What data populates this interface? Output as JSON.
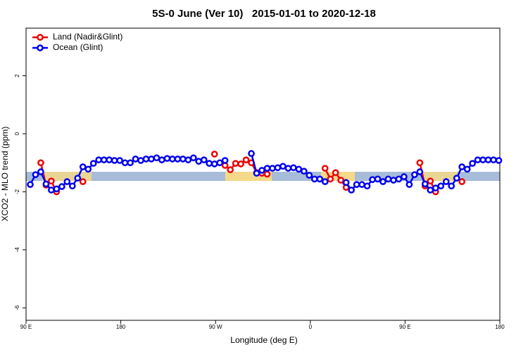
{
  "chart_data": {
    "type": "line",
    "title": "5S-0 June (Ver 10)   2015-01-01 to 2020-12-18",
    "x_label": "Longitude (deg E)",
    "y_label": "XCO2 - MLO trend (ppm)",
    "xlim": [
      90,
      540
    ],
    "xticks": [
      {
        "value": 90,
        "label": "90 E"
      },
      180,
      {
        "value": 270,
        "label": "90 W"
      },
      {
        "value": 360,
        "label": "0"
      },
      {
        "value": 450,
        "label": "90 E"
      },
      {
        "value": 540,
        "label": "180"
      }
    ],
    "ylim": [
      -6.43,
      3.64
    ],
    "yticks": [
      -6,
      -4,
      -2,
      0,
      2
    ],
    "legend": "top-left",
    "x": [
      94,
      99,
      104,
      109,
      114,
      119,
      124,
      129,
      134,
      139,
      144,
      149,
      154,
      159,
      164,
      169,
      174,
      179,
      184,
      189,
      194,
      199,
      204,
      209,
      214,
      219,
      224,
      229,
      234,
      239,
      244,
      249,
      254,
      259,
      264,
      269,
      274,
      279,
      284,
      289,
      294,
      299,
      304,
      309,
      314,
      319,
      324,
      329,
      334,
      339,
      344,
      349,
      354,
      359,
      364,
      369,
      374,
      379,
      384,
      389,
      394,
      399,
      404,
      409,
      414,
      419,
      424,
      429,
      434,
      439,
      444,
      449,
      454,
      459,
      464,
      469,
      474,
      479,
      484,
      489,
      494,
      499,
      504,
      509,
      514,
      519,
      524,
      529,
      534,
      539
    ],
    "series": [
      {
        "name": "Land (Nadir&Glint)",
        "color": "#ee0000",
        "values": [
          null,
          null,
          -1.0,
          -1.77,
          -1.63,
          -2.0,
          null,
          null,
          null,
          null,
          -1.65,
          null,
          null,
          null,
          null,
          null,
          null,
          null,
          null,
          null,
          null,
          null,
          null,
          null,
          null,
          null,
          null,
          null,
          null,
          null,
          null,
          null,
          null,
          null,
          null,
          -0.7,
          null,
          -1.09,
          -1.24,
          -1.02,
          -1.04,
          -0.9,
          -1.0,
          -1.34,
          -1.36,
          -1.39,
          null,
          null,
          null,
          null,
          null,
          null,
          null,
          null,
          null,
          null,
          -1.19,
          -1.56,
          -1.34,
          -1.6,
          -1.85,
          null,
          null,
          null,
          null,
          null,
          null,
          null,
          null,
          null,
          null,
          null,
          null,
          null,
          -1.0,
          -1.8,
          -1.63,
          -2.0,
          null,
          null,
          null,
          null,
          -1.65,
          null,
          null,
          null,
          null,
          null,
          null,
          null
        ]
      },
      {
        "name": "Ocean (Glint)",
        "color": "#0000ee",
        "values": [
          -1.75,
          -1.41,
          -1.31,
          -1.73,
          -1.94,
          -1.9,
          -1.82,
          -1.65,
          -1.8,
          -1.53,
          -1.14,
          -1.22,
          -1.02,
          -0.9,
          -0.9,
          -0.9,
          -0.92,
          -0.92,
          -1.0,
          -1.0,
          -0.87,
          -0.92,
          -0.87,
          -0.87,
          -0.83,
          -0.9,
          -0.85,
          -0.87,
          -0.87,
          -0.87,
          -0.9,
          -0.83,
          -0.95,
          -0.9,
          -1.02,
          -1.04,
          -1.0,
          -0.92,
          null,
          null,
          null,
          null,
          -0.68,
          -1.36,
          -1.26,
          -1.19,
          -1.19,
          -1.17,
          -1.12,
          -1.19,
          -1.17,
          -1.22,
          -1.29,
          -1.43,
          -1.56,
          -1.56,
          -1.65,
          null,
          null,
          null,
          -1.68,
          -1.94,
          -1.75,
          -1.75,
          -1.8,
          -1.58,
          -1.56,
          -1.65,
          -1.56,
          -1.6,
          -1.56,
          -1.48,
          -1.75,
          -1.41,
          -1.31,
          -1.73,
          -1.94,
          -1.87,
          -1.8,
          -1.65,
          -1.8,
          -1.53,
          -1.14,
          -1.22,
          -1.02,
          -0.9,
          -0.9,
          -0.9,
          -0.9,
          -0.92
        ]
      }
    ]
  }
}
